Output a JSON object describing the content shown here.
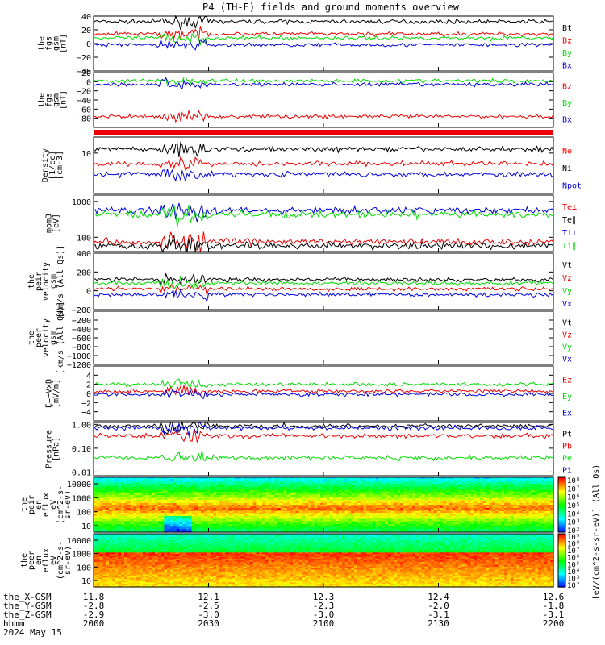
{
  "title": "P4 (TH-E) fields and ground moments overview",
  "colors": {
    "black": "#000000",
    "red": "#ee0000",
    "green": "#00dd00",
    "blue": "#0000dd"
  },
  "chart_data": {
    "type": "line",
    "time_axis": {
      "ticks": [
        {
          "hhmm": "2000",
          "x_gsm": "11.8",
          "y_gsm": "-2.8",
          "z_gsm": "-2.9"
        },
        {
          "hhmm": "2030",
          "x_gsm": "12.1",
          "y_gsm": "-2.5",
          "z_gsm": "-3.0"
        },
        {
          "hhmm": "2100",
          "x_gsm": "12.3",
          "y_gsm": "-2.3",
          "z_gsm": "-3.0"
        },
        {
          "hhmm": "2130",
          "x_gsm": "12.4",
          "y_gsm": "-2.0",
          "z_gsm": "-3.1"
        },
        {
          "hhmm": "2200",
          "x_gsm": "12.6",
          "y_gsm": "-1.8",
          "z_gsm": "-3.1"
        }
      ],
      "row_labels": [
        "the_X-GSM",
        "the_Y-GSM",
        "the_Z-GSM",
        "hhmm"
      ],
      "date": "2024 May 15"
    },
    "panels": [
      {
        "ylabel": [
          "the",
          "fgs",
          "gsm",
          "[nT]"
        ],
        "ylim": [
          -40,
          40
        ],
        "ticks": [
          "40",
          "20",
          "0",
          "−20",
          "−40"
        ],
        "legend": [
          {
            "label": "Bt",
            "color": "black",
            "mean": 32
          },
          {
            "label": "Bz",
            "color": "red",
            "mean": 14
          },
          {
            "label": "By",
            "color": "green",
            "mean": 8
          },
          {
            "label": "Bx",
            "color": "blue",
            "mean": -2
          }
        ]
      },
      {
        "ylabel": [
          "the",
          "fgs",
          "gsm",
          "[nT]"
        ],
        "ylim": [
          -100,
          20
        ],
        "ticks": [
          "20",
          "0",
          "−20",
          "−40",
          "−60",
          "−80"
        ],
        "legend": [
          {
            "label": "Bz",
            "color": "red",
            "mean": -76
          },
          {
            "label": "By",
            "color": "green",
            "mean": 2
          },
          {
            "label": "Bx",
            "color": "blue",
            "mean": -6
          }
        ]
      },
      {
        "ylabel": [
          "Density",
          "[1/cc]",
          "[cm-3]"
        ],
        "log": true,
        "ylim": [
          0.3,
          40
        ],
        "ticks": [
          "10"
        ],
        "legend": [
          {
            "label": "Ne",
            "color": "red",
            "mean": 4
          },
          {
            "label": "Ni",
            "color": "black",
            "mean": 14
          },
          {
            "label": "Npot",
            "color": "blue",
            "mean": 1.6
          }
        ]
      },
      {
        "ylabel": [
          "mom3",
          "[eV]"
        ],
        "log": true,
        "ylim": [
          40,
          1500
        ],
        "ticks": [
          "1000",
          "100"
        ],
        "legend": [
          {
            "label": "Te⊥",
            "color": "red",
            "mean": 75
          },
          {
            "label": "Te∥",
            "color": "black",
            "mean": 58
          },
          {
            "label": "Ti⊥",
            "color": "blue",
            "mean": 560
          },
          {
            "label": "Ti∥",
            "color": "green",
            "mean": 430
          }
        ]
      },
      {
        "ylabel": [
          "the",
          "peir",
          "velocity",
          "gsm",
          "[km/s (All Qs)]"
        ],
        "ylim": [
          -200,
          400
        ],
        "ticks": [
          "400",
          "200",
          "0",
          "−200"
        ],
        "legend": [
          {
            "label": "Vt",
            "color": "black",
            "mean": 120
          },
          {
            "label": "Vz",
            "color": "red",
            "mean": 20
          },
          {
            "label": "Vy",
            "color": "green",
            "mean": 80
          },
          {
            "label": "Vx",
            "color": "blue",
            "mean": -40
          }
        ]
      },
      {
        "ylabel": [
          "the",
          "peer",
          "velocity",
          "gsm",
          "[km/s (All Qs)]"
        ],
        "ylim": [
          -1200,
          0
        ],
        "ticks": [
          "−200",
          "−400",
          "−600",
          "−800",
          "−1000",
          "−1200"
        ],
        "legend": [
          {
            "label": "Vt",
            "color": "black"
          },
          {
            "label": "Vz",
            "color": "red"
          },
          {
            "label": "Vy",
            "color": "green"
          },
          {
            "label": "Vx",
            "color": "blue"
          }
        ]
      },
      {
        "ylabel": [
          "E=−VxB",
          "[mV/m]"
        ],
        "ylim": [
          -6,
          6
        ],
        "ticks": [
          "4",
          "2",
          "0",
          "−2",
          "−4"
        ],
        "legend": [
          {
            "label": "Ez",
            "color": "red",
            "mean": 0.5
          },
          {
            "label": "Ey",
            "color": "green",
            "mean": 2
          },
          {
            "label": "Ex",
            "color": "blue",
            "mean": -0.2
          }
        ]
      },
      {
        "ylabel": [
          "Pressure",
          "[nPa]"
        ],
        "log": true,
        "ylim": [
          0.007,
          1.2
        ],
        "ticks": [
          "1.00",
          "0.10",
          "0.01"
        ],
        "legend": [
          {
            "label": "Pt",
            "color": "black",
            "mean": 0.85
          },
          {
            "label": "Pb",
            "color": "red",
            "mean": 0.33
          },
          {
            "label": "Pe",
            "color": "green",
            "mean": 0.04
          },
          {
            "label": "Pi",
            "color": "blue",
            "mean": 0.7
          }
        ]
      },
      {
        "type": "heatmap",
        "ylabel": [
          "the",
          "peir",
          "en",
          "eflux",
          "eV",
          "(cm^2-s-",
          "sr-eV)"
        ],
        "ticks": [
          "10000",
          "1000",
          "100",
          "10"
        ]
      },
      {
        "type": "heatmap",
        "ylabel": [
          "the",
          "peer",
          "en",
          "eflux",
          "eV",
          "(cm^2-s-",
          "sr-eV)"
        ],
        "ticks": [
          "10000",
          "1000",
          "100",
          "10"
        ]
      }
    ],
    "colorbar": {
      "label": "[eV/(cm^2-s-sr-eV)] (All Qs)",
      "ion_ticks": [
        "10⁸",
        "10⁷",
        "10⁶",
        "10⁵",
        "10⁴",
        "10³",
        "10²"
      ],
      "electron_ticks": [
        "10⁹",
        "10⁸",
        "10⁷",
        "10⁶",
        "10⁵",
        "10⁴",
        "10³",
        "10²"
      ]
    }
  }
}
